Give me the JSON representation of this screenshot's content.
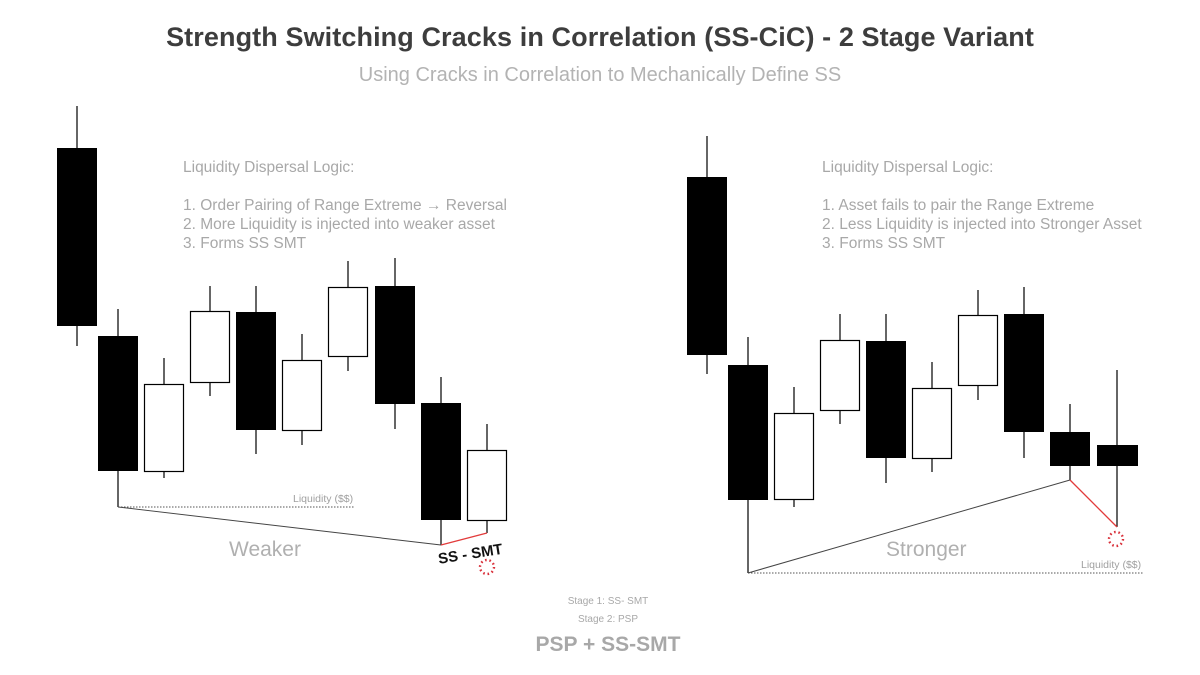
{
  "header": {
    "title": "Strength Switching Cracks in Correlation (SS-CiC) - 2 Stage Variant",
    "subtitle": "Using Cracks in Correlation to Mechanically Define SS"
  },
  "left_panel": {
    "logic_heading": "Liquidity Dispersal Logic:",
    "logic_items": [
      "1. Order Pairing of Range Extreme → Reversal",
      "2. More Liquidity is injected into weaker asset",
      "3. Forms SS SMT"
    ],
    "liquidity_label": "Liquidity ($$)",
    "asset_label": "Weaker",
    "smt_label": "SS - SMT"
  },
  "right_panel": {
    "logic_heading": "Liquidity Dispersal Logic:",
    "logic_items": [
      "1. Asset fails to pair the Range Extreme",
      "2. Less Liquidity is injected into Stronger Asset",
      "3. Forms SS SMT"
    ],
    "liquidity_label": "Liquidity ($$)",
    "asset_label": "Stronger"
  },
  "footer": {
    "stage1": "Stage 1:  SS- SMT",
    "stage2": "Stage 2: PSP",
    "summary": "PSP + SS-SMT"
  },
  "colors": {
    "bearish_candle": "#000000",
    "bullish_candle": "#ffffff",
    "divergence_line": "#e23b3b",
    "liquidity_circle": "#d9303a",
    "muted_text": "#a8a8a8"
  }
}
